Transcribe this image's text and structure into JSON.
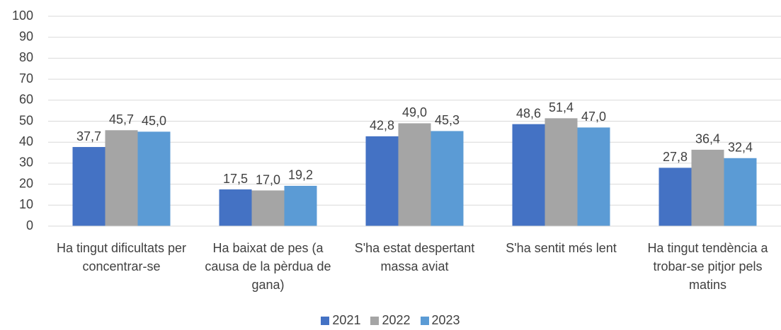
{
  "chart_data": {
    "type": "bar",
    "categories": [
      "Ha tingut dificultats per concentrar-se",
      "Ha baixat de pes (a causa de la pèrdua de gana)",
      "S'ha estat despertant massa aviat",
      "S'ha sentit més lent",
      "Ha tingut tendència a trobar-se pitjor pels matins"
    ],
    "series": [
      {
        "name": "2021",
        "color": "#4472c4",
        "values": [
          37.7,
          17.5,
          42.8,
          48.6,
          27.8
        ],
        "value_labels": [
          "37,7",
          "17,5",
          "42,8",
          "48,6",
          "27,8"
        ]
      },
      {
        "name": "2022",
        "color": "#a5a5a5",
        "values": [
          45.7,
          17.0,
          49.0,
          51.4,
          36.4
        ],
        "value_labels": [
          "45,7",
          "17,0",
          "49,0",
          "51,4",
          "36,4"
        ]
      },
      {
        "name": "2023",
        "color": "#5b9bd5",
        "values": [
          45.0,
          19.2,
          45.3,
          47.0,
          32.4
        ],
        "value_labels": [
          "45,0",
          "19,2",
          "45,3",
          "47,0",
          "32,4"
        ]
      }
    ],
    "ylim": [
      0,
      100
    ],
    "yticks": [
      0,
      10,
      20,
      30,
      40,
      50,
      60,
      70,
      80,
      90,
      100
    ],
    "grid": true,
    "legend": "bottom"
  }
}
